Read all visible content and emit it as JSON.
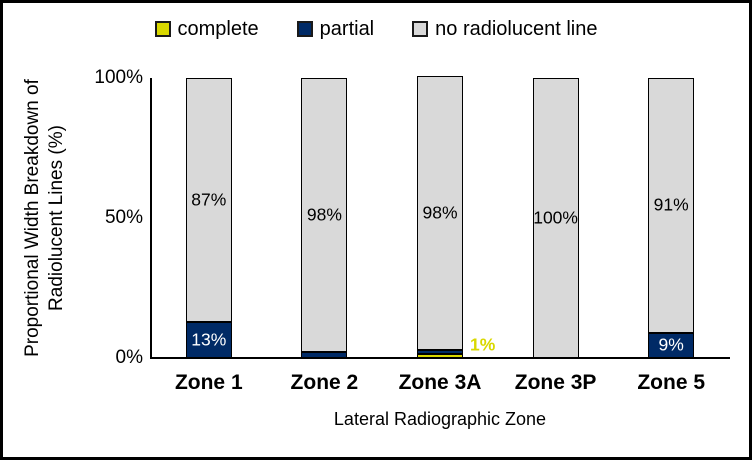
{
  "accent_colors": {
    "complete_yellow": "#d9d800",
    "partial_navy": "#002a66",
    "none_gray": "#d9d9d9",
    "axis_black": "#000000"
  },
  "legend": {
    "items": [
      {
        "label": "complete",
        "color": "#d9d800"
      },
      {
        "label": "partial",
        "color": "#002a66"
      },
      {
        "label": "no radiolucent line",
        "color": "#d9d9d9"
      }
    ]
  },
  "y_axis": {
    "title_line1": "Proportional Width Breakdown of",
    "title_line2": "Radiolucent Lines (%)",
    "ticks": [
      {
        "label": "100%",
        "value": 100
      },
      {
        "label": "50%",
        "value": 50
      },
      {
        "label": "0%",
        "value": 0
      }
    ]
  },
  "x_axis": {
    "title": "Lateral Radiographic Zone"
  },
  "chart_data": {
    "type": "bar",
    "subtype": "stacked-100-percent",
    "title": "",
    "xlabel": "Lateral Radiographic Zone",
    "ylabel": "Proportional Width Breakdown of Radiolucent Lines (%)",
    "ylim": [
      0,
      100
    ],
    "grid": false,
    "legend_position": "top",
    "categories": [
      "Zone 1",
      "Zone 2",
      "Zone 3A",
      "Zone 3P",
      "Zone 5"
    ],
    "series": [
      {
        "name": "complete",
        "color": "#d9d800",
        "values": [
          0,
          0,
          1,
          0,
          0
        ],
        "data_labels": [
          "",
          "",
          "1%",
          "",
          ""
        ],
        "label_placement": "outside-right",
        "label_color": "#d9d800"
      },
      {
        "name": "partial",
        "color": "#002a66",
        "values": [
          13,
          2,
          1,
          0,
          9
        ],
        "data_labels": [
          "13%",
          "",
          "",
          "",
          "9%"
        ],
        "label_placement": "inside",
        "label_color": "#ffffff"
      },
      {
        "name": "no radiolucent line",
        "color": "#d9d9d9",
        "values": [
          87,
          98,
          98,
          100,
          91
        ],
        "data_labels": [
          "87%",
          "98%",
          "98%",
          "100%",
          "91%"
        ],
        "label_placement": "inside",
        "label_color": "#000000"
      }
    ]
  }
}
